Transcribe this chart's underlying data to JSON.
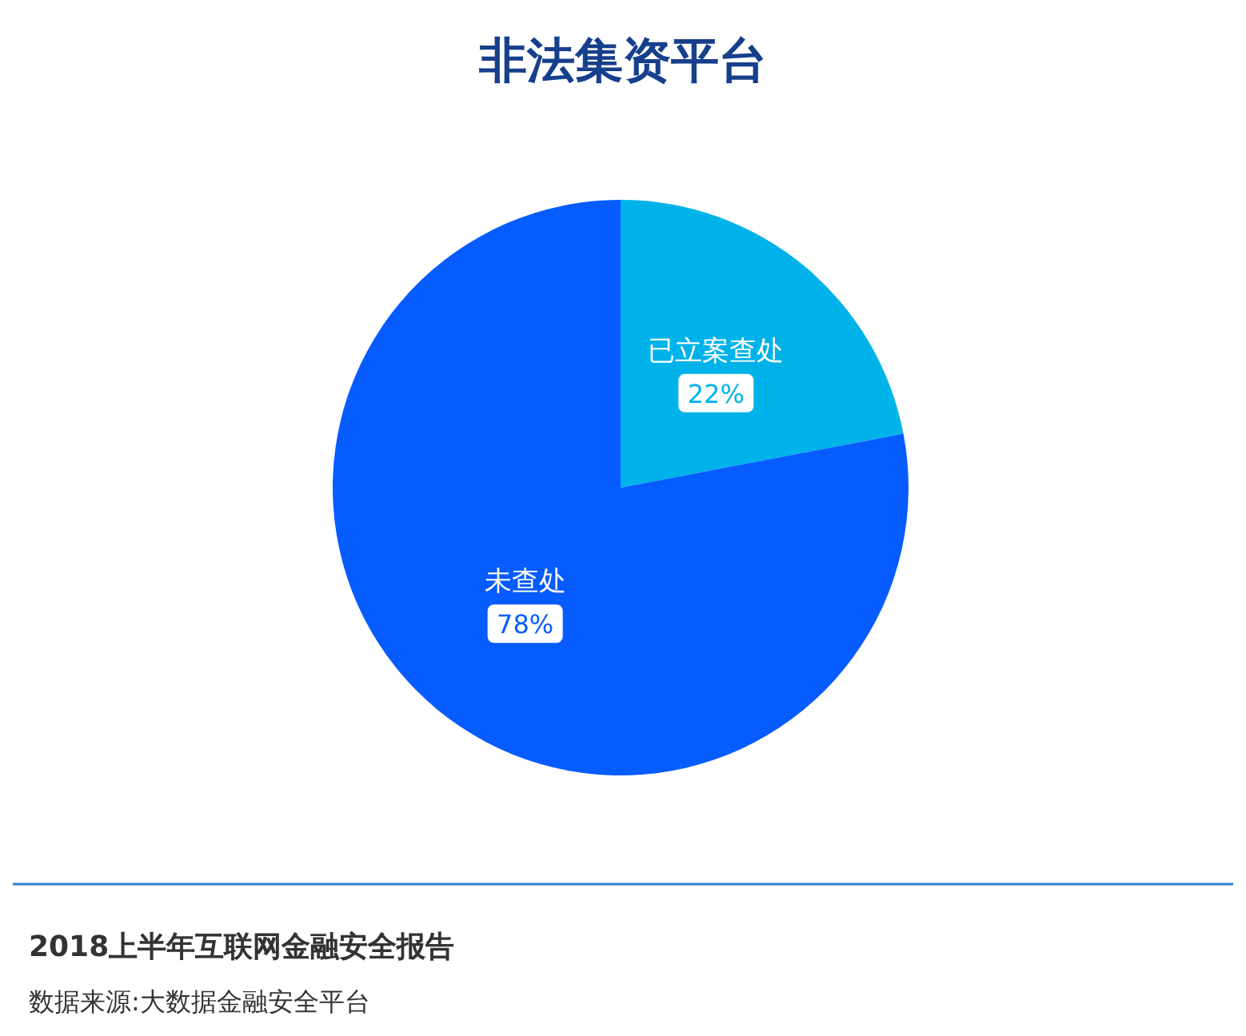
{
  "chart_data": {
    "type": "pie",
    "title": "非法集资平台",
    "categories": [
      "已立案查处",
      "未查处"
    ],
    "values": [
      22,
      78
    ],
    "colors": [
      "#00b2ea",
      "#075cff"
    ],
    "value_labels": [
      "22%",
      "78%"
    ],
    "annotations": [
      "2018上半年互联网金融安全报告",
      "数据来源:大数据金融安全平台"
    ]
  }
}
